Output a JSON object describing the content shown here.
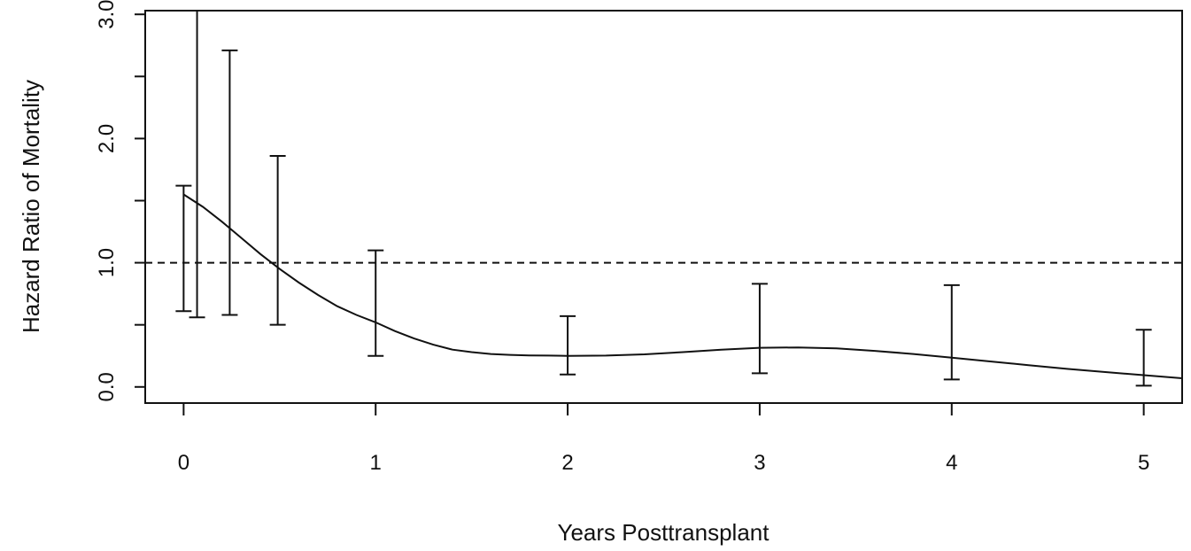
{
  "chart_data": {
    "type": "line",
    "title": "",
    "xlabel": "Years Posttransplant",
    "ylabel": "Hazard Ratio of Mortality",
    "xlim": [
      -0.2,
      5.2
    ],
    "ylim": [
      -0.13,
      3.03
    ],
    "x_ticks": [
      0,
      1,
      2,
      3,
      4,
      5
    ],
    "x_tick_labels": [
      "0",
      "1",
      "2",
      "3",
      "4",
      "5"
    ],
    "y_ticks": [
      0.0,
      1.0,
      2.0,
      3.0
    ],
    "y_tick_labels": [
      "0.0",
      "1.0",
      "2.0",
      "3.0"
    ],
    "minor_y_ticks": [
      0.5,
      1.5,
      2.5
    ],
    "reference_line": {
      "y": 1.0,
      "style": "dashed"
    },
    "grid": false,
    "legend": "none",
    "series": [
      {
        "type": "line",
        "x": [
          0.0,
          0.1,
          0.2,
          0.3,
          0.4,
          0.5,
          0.6,
          0.7,
          0.8,
          0.9,
          1.0,
          1.1,
          1.2,
          1.3,
          1.4,
          1.5,
          1.6,
          1.7,
          1.8,
          1.9,
          2.0,
          2.2,
          2.4,
          2.6,
          2.8,
          3.0,
          3.2,
          3.4,
          3.6,
          3.8,
          4.0,
          4.2,
          4.4,
          4.6,
          4.8,
          5.0,
          5.2
        ],
        "y": [
          1.55,
          1.45,
          1.33,
          1.2,
          1.07,
          0.95,
          0.84,
          0.74,
          0.65,
          0.58,
          0.52,
          0.45,
          0.39,
          0.34,
          0.3,
          0.28,
          0.265,
          0.258,
          0.254,
          0.252,
          0.25,
          0.252,
          0.262,
          0.28,
          0.3,
          0.315,
          0.318,
          0.31,
          0.29,
          0.265,
          0.235,
          0.205,
          0.175,
          0.145,
          0.12,
          0.095,
          0.07
        ]
      },
      {
        "type": "errorbar",
        "intervals": [
          {
            "x": 0.0,
            "lower": 0.61,
            "upper": 1.62
          },
          {
            "x": 0.07,
            "lower": 0.56,
            "upper": 3.1
          },
          {
            "x": 0.24,
            "lower": 0.58,
            "upper": 2.71
          },
          {
            "x": 0.49,
            "lower": 0.5,
            "upper": 1.86
          },
          {
            "x": 1.0,
            "lower": 0.25,
            "upper": 1.1
          },
          {
            "x": 2.0,
            "lower": 0.1,
            "upper": 0.57
          },
          {
            "x": 3.0,
            "lower": 0.11,
            "upper": 0.83
          },
          {
            "x": 4.0,
            "lower": 0.06,
            "upper": 0.82
          },
          {
            "x": 5.0,
            "lower": 0.01,
            "upper": 0.46
          }
        ]
      }
    ]
  }
}
